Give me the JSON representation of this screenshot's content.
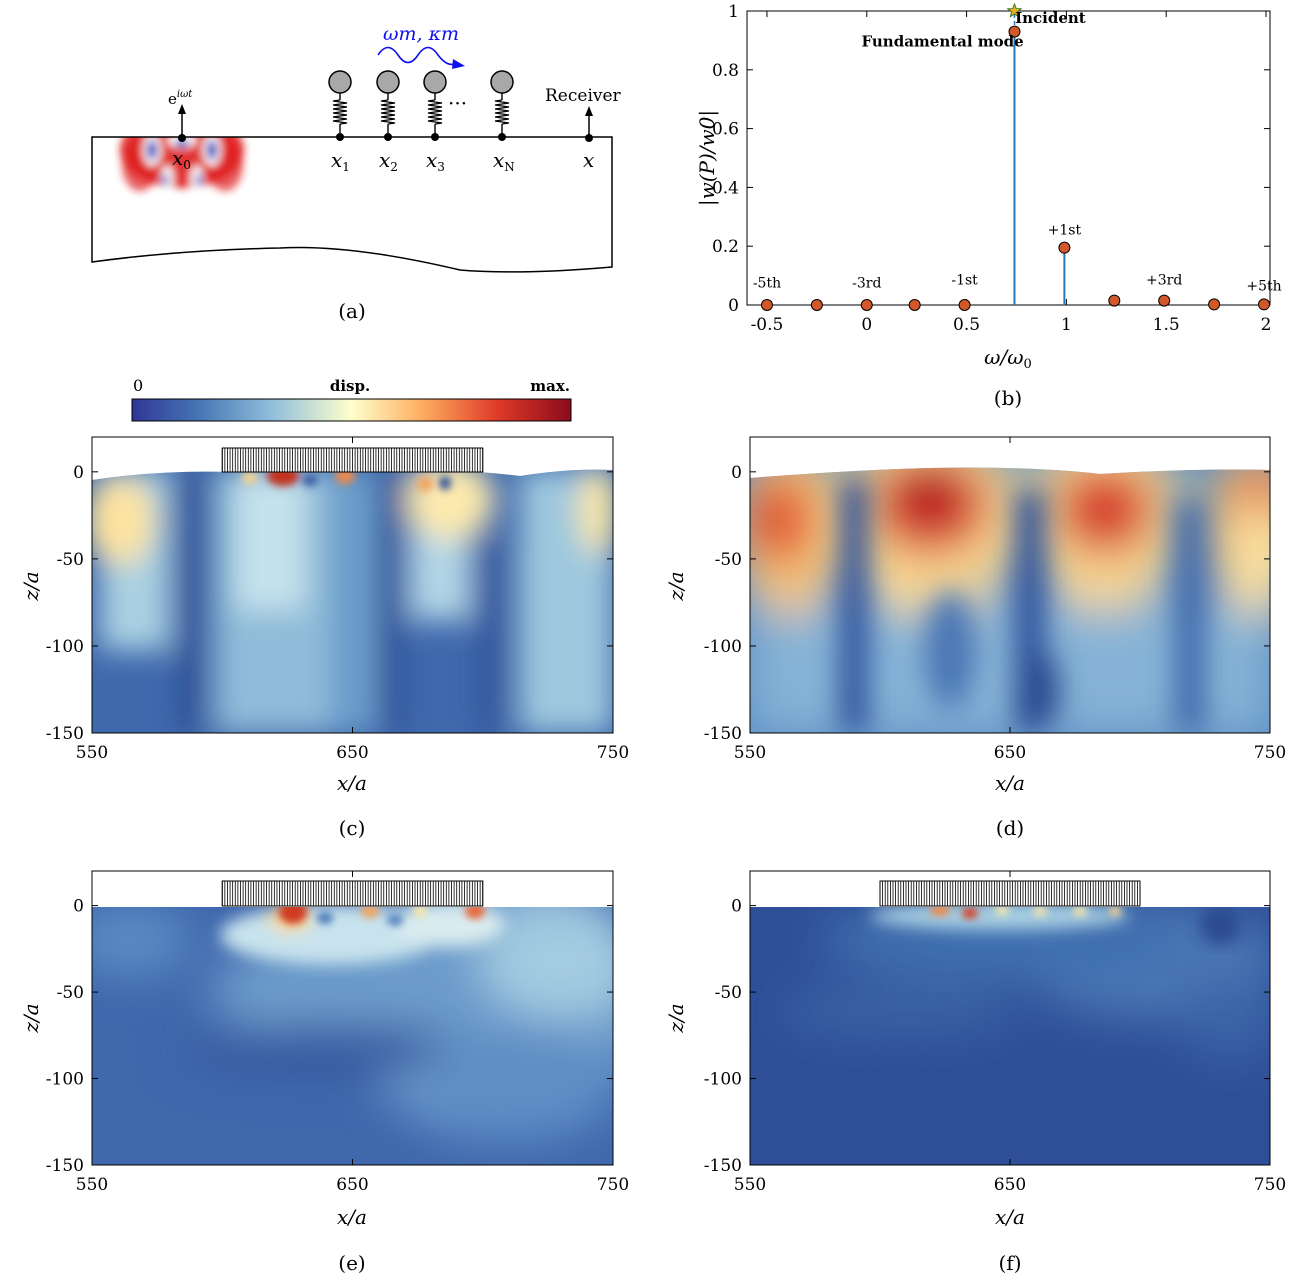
{
  "captions": {
    "a": "(a)",
    "b": "(b)",
    "c": "(c)",
    "d": "(d)",
    "e": "(e)",
    "f": "(f)"
  },
  "panel_a": {
    "source_label": "e",
    "source_label_sup": "iωt",
    "x0_label": "x",
    "x0_sub": "0",
    "resonator_labels": [
      {
        "main": "x",
        "sub": "1"
      },
      {
        "main": "x",
        "sub": "2"
      },
      {
        "main": "x",
        "sub": "3"
      },
      {
        "main": "x",
        "sub": "N"
      }
    ],
    "ellipsis": "···",
    "modulation_label": "ωm, κm",
    "receiver_label": "Receiver",
    "receiver_x_label": "x",
    "colors": {
      "modulation": "#1010ee",
      "field_pos": "#e02020",
      "field_neg": "#2040c0",
      "mass": "#a8a8a8"
    }
  },
  "colorbar": {
    "min_label": "0",
    "mid_label": "disp.",
    "max_label": "max."
  },
  "chart_data": [
    {
      "type": "stem",
      "panel": "b",
      "xlabel": "ω/ω",
      "xlabel_sub": "0",
      "ylabel": "|w(P)/w0|",
      "xlim": [
        -0.6,
        2.02
      ],
      "ylim": [
        0,
        1
      ],
      "xticks": [
        -0.5,
        0,
        0.5,
        1,
        1.5,
        2
      ],
      "xtick_labels": [
        "-0.5",
        "0",
        "0.5",
        "1",
        "1.5",
        "2"
      ],
      "yticks": [
        0,
        0.2,
        0.4,
        0.6,
        0.8,
        1
      ],
      "ytick_labels": [
        "0",
        "0.2",
        "0.4",
        "0.6",
        "0.8",
        "1"
      ],
      "series": [
        {
          "name": "Incident",
          "points": [
            {
              "x": 0.74,
              "y": 1.0
            }
          ],
          "color": "#2a7ab8"
        },
        {
          "points": [
            {
              "x": -0.5,
              "y": 0.0
            },
            {
              "x": -0.25,
              "y": 0.0
            },
            {
              "x": 0.0,
              "y": 0.0
            },
            {
              "x": 0.24,
              "y": 0.0
            },
            {
              "x": 0.49,
              "y": 0.0
            },
            {
              "x": 0.74,
              "y": 0.93
            },
            {
              "x": 0.99,
              "y": 0.195
            },
            {
              "x": 1.24,
              "y": 0.015
            },
            {
              "x": 1.49,
              "y": 0.015
            },
            {
              "x": 1.74,
              "y": 0.002
            },
            {
              "x": 1.99,
              "y": 0.002
            }
          ],
          "color": "#d2582a"
        }
      ],
      "annotations": [
        {
          "text": "-5th",
          "x": -0.5,
          "y": 0.06
        },
        {
          "text": "-3rd",
          "x": 0.0,
          "y": 0.06
        },
        {
          "text": "-1st",
          "x": 0.49,
          "y": 0.07
        },
        {
          "text": "+1st",
          "x": 0.99,
          "y": 0.24
        },
        {
          "text": "+3rd",
          "x": 1.49,
          "y": 0.07
        },
        {
          "text": "+5th",
          "x": 1.99,
          "y": 0.05
        },
        {
          "text": "Fundamental mode",
          "x": 0.38,
          "y": 0.88
        },
        {
          "text": "Incident",
          "x": 0.92,
          "y": 0.96
        }
      ]
    },
    {
      "type": "heatmap",
      "panel": "c",
      "xlabel": "x/a",
      "ylabel": "z/a",
      "xlim": [
        550,
        750
      ],
      "ylim": [
        -150,
        20
      ],
      "xticks": [
        "550",
        "650",
        "750"
      ],
      "yticks": [
        "0",
        "-50",
        "-100",
        "-150"
      ],
      "resonator_span": [
        600,
        700
      ]
    },
    {
      "type": "heatmap",
      "panel": "d",
      "xlabel": "x/a",
      "ylabel": "z/a",
      "xlim": [
        550,
        750
      ],
      "ylim": [
        -150,
        20
      ],
      "xticks": [
        "550",
        "650",
        "750"
      ],
      "yticks": [
        "0",
        "-50",
        "-100",
        "-150"
      ]
    },
    {
      "type": "heatmap",
      "panel": "e",
      "xlabel": "x/a",
      "ylabel": "z/a",
      "xlim": [
        550,
        750
      ],
      "ylim": [
        -150,
        20
      ],
      "xticks": [
        "550",
        "650",
        "750"
      ],
      "yticks": [
        "0",
        "-50",
        "-100",
        "-150"
      ],
      "resonator_span": [
        600,
        700
      ]
    },
    {
      "type": "heatmap",
      "panel": "f",
      "xlabel": "x/a",
      "ylabel": "z/a",
      "xlim": [
        550,
        750
      ],
      "ylim": [
        -150,
        20
      ],
      "xticks": [
        "550",
        "650",
        "750"
      ],
      "yticks": [
        "0",
        "-50",
        "-100",
        "-150"
      ],
      "resonator_span": [
        600,
        700
      ]
    }
  ]
}
